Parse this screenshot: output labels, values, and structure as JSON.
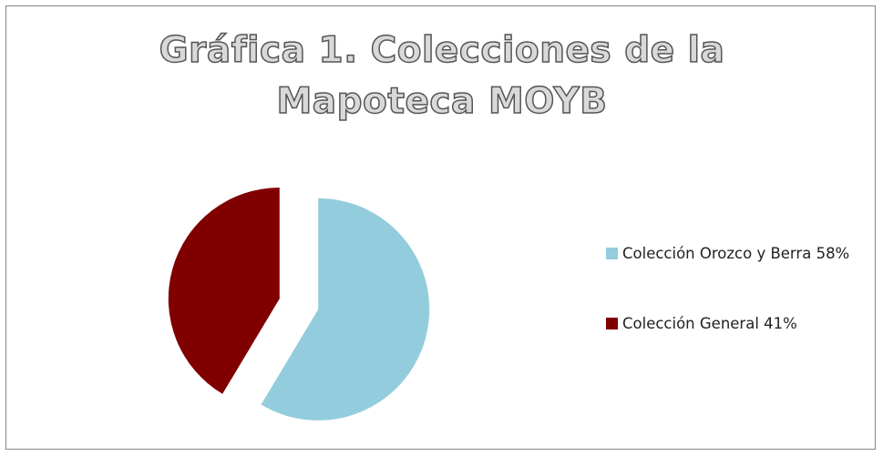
{
  "chart_data": {
    "type": "pie",
    "title": "Gráfica 1. Colecciones de la Mapoteca MOYB",
    "categories": [
      "Colección Orozco y Berra 58%",
      "Colección General 41%"
    ],
    "values": [
      58,
      41
    ],
    "colors": [
      "#93cddd",
      "#800000"
    ],
    "legend": "right",
    "exploded": true
  }
}
